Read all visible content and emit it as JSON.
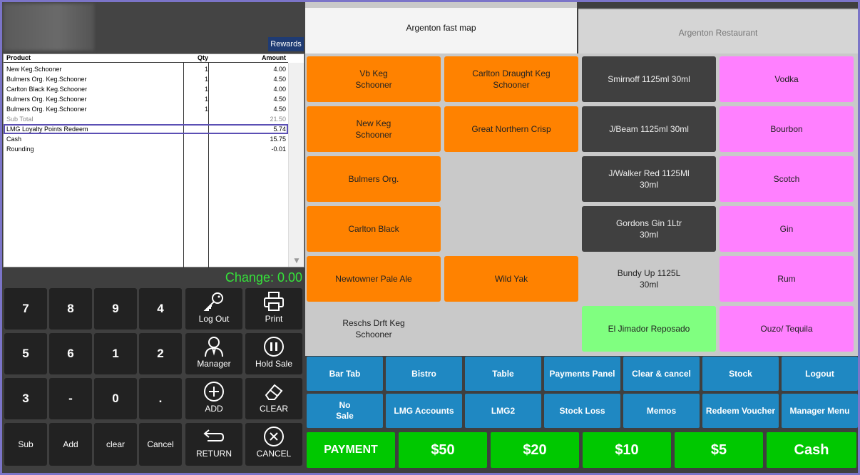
{
  "header": {
    "rewards_label": "Rewards"
  },
  "receipt": {
    "headers": {
      "product": "Product",
      "qty": "Qty",
      "amount": "Amount"
    },
    "rows": [
      {
        "product": "New Keg.Schooner",
        "qty": "1",
        "amount": "4.00"
      },
      {
        "product": "Bulmers Org.  Keg.Schooner",
        "qty": "1",
        "amount": "4.50"
      },
      {
        "product": "Carlton Black Keg.Schooner",
        "qty": "1",
        "amount": "4.00"
      },
      {
        "product": "Bulmers Org.  Keg.Schooner",
        "qty": "1",
        "amount": "4.50"
      },
      {
        "product": "Bulmers Org.  Keg.Schooner",
        "qty": "1",
        "amount": "4.50"
      },
      {
        "product": "Sub Total",
        "qty": "",
        "amount": "21.50"
      },
      {
        "product": "LMG Loyalty Points Redeem",
        "qty": "",
        "amount": "5.74"
      },
      {
        "product": "Cash",
        "qty": "",
        "amount": "15.75"
      },
      {
        "product": "Rounding",
        "qty": "",
        "amount": "-0.01"
      }
    ]
  },
  "change_text": "Change: 0.00",
  "keypad": {
    "keys": [
      "7",
      "8",
      "9",
      "4",
      "5",
      "6",
      "1",
      "2",
      "3",
      "-",
      "0",
      "."
    ],
    "bottom": [
      "Sub",
      "Add",
      "clear",
      "Cancel"
    ]
  },
  "functions": {
    "logout": "Log Out",
    "print": "Print",
    "manager": "Manager",
    "hold_sale": "Hold Sale",
    "add": "ADD",
    "clear": "CLEAR",
    "return": "RETURN",
    "cancel": "CANCEL"
  },
  "tabs": {
    "active": "Argenton fast map",
    "inactive": "Argenton Restaurant"
  },
  "products": {
    "col1": [
      "Vb Keg\nSchooner",
      "New Keg\nSchooner",
      "Bulmers Org.",
      "Carlton Black",
      "Newtowner Pale Ale",
      "Reschs Drft Keg\nSchooner"
    ],
    "col2": [
      "Carlton Draught Keg\nSchooner",
      "Great Northern Crisp",
      "",
      "",
      "Wild Yak"
    ],
    "col3": [
      "Smirnoff 1125ml 30ml",
      "J/Beam 1125ml 30ml",
      "J/Walker Red 1125Ml\n30ml",
      "Gordons Gin 1Ltr\n30ml",
      "Bundy Up 1125L\n30ml",
      "El Jimador Reposado"
    ],
    "col4": [
      "Vodka",
      "Bourbon",
      "Scotch",
      "Gin",
      "Rum",
      "Ouzo/ Tequila"
    ]
  },
  "colors": {
    "orange": "#ff8200",
    "dark": "#404040",
    "pink": "#ff80ff",
    "green": "#80ff80",
    "blue": "#1f88c2",
    "pay_green": "#00c800",
    "change_green": "#35e23a"
  },
  "bottom_row1": [
    "Bar Tab",
    "Bistro",
    "Table",
    "Payments Panel",
    "Clear & cancel",
    "Stock",
    "Logout"
  ],
  "bottom_row2": [
    "No\nSale",
    "LMG Accounts",
    "LMG2",
    "Stock Loss",
    "Memos",
    "Redeem Voucher",
    "Manager Menu"
  ],
  "payments": [
    "PAYMENT",
    "$50",
    "$20",
    "$10",
    "$5",
    "Cash"
  ]
}
